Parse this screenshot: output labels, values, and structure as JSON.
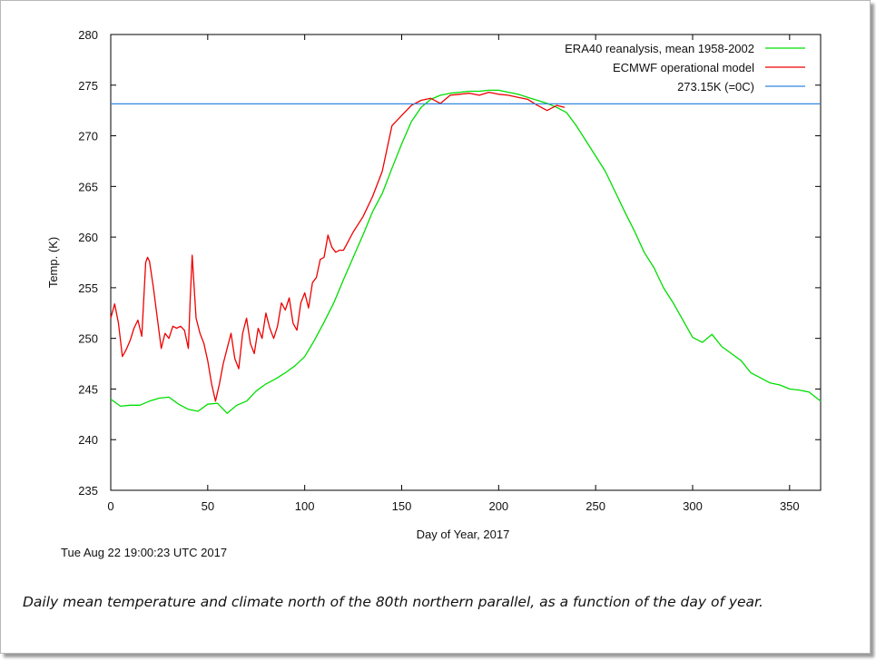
{
  "chart_data": {
    "type": "line",
    "title": "",
    "xlabel": "Day of Year, 2017",
    "ylabel": "Temp. (K)",
    "xlim": [
      0,
      366
    ],
    "ylim": [
      235,
      280
    ],
    "xticks": [
      0,
      50,
      100,
      150,
      200,
      250,
      300,
      350
    ],
    "yticks": [
      235,
      240,
      245,
      250,
      255,
      260,
      265,
      270,
      275,
      280
    ],
    "legend_position": "top-right",
    "series": [
      {
        "name": "ERA40 reanalysis, mean 1958-2002",
        "color": "#00dd00",
        "x": [
          0,
          5,
          10,
          15,
          20,
          25,
          30,
          35,
          40,
          45,
          50,
          55,
          60,
          65,
          70,
          75,
          80,
          85,
          90,
          95,
          100,
          105,
          110,
          115,
          120,
          125,
          130,
          135,
          140,
          145,
          150,
          155,
          160,
          165,
          170,
          175,
          180,
          185,
          190,
          195,
          200,
          205,
          210,
          215,
          220,
          225,
          230,
          235,
          240,
          245,
          250,
          255,
          260,
          265,
          270,
          275,
          280,
          285,
          290,
          295,
          300,
          305,
          310,
          315,
          320,
          325,
          330,
          335,
          340,
          345,
          350,
          355,
          360,
          366
        ],
        "y": [
          244.0,
          243.3,
          243.4,
          243.4,
          243.8,
          244.1,
          244.2,
          243.5,
          243.0,
          242.8,
          243.5,
          243.6,
          242.6,
          243.4,
          243.8,
          244.8,
          245.5,
          246.0,
          246.6,
          247.3,
          248.2,
          249.8,
          251.6,
          253.5,
          255.8,
          258.0,
          260.2,
          262.5,
          264.3,
          266.8,
          269.2,
          271.4,
          272.8,
          273.6,
          274.0,
          274.2,
          274.3,
          274.4,
          274.4,
          274.5,
          274.5,
          274.3,
          274.1,
          273.8,
          273.5,
          273.2,
          272.8,
          272.3,
          271.0,
          269.5,
          268.0,
          266.5,
          264.5,
          262.5,
          260.6,
          258.5,
          257.0,
          255.0,
          253.5,
          251.8,
          250.1,
          249.6,
          250.4,
          249.2,
          248.5,
          247.8,
          246.6,
          246.1,
          245.6,
          245.4,
          245.0,
          244.9,
          244.7,
          243.8
        ]
      },
      {
        "name": "ECMWF operational model",
        "color": "#ee0000",
        "x": [
          0,
          2,
          4,
          6,
          8,
          10,
          12,
          14,
          16,
          18,
          19,
          20,
          22,
          24,
          26,
          28,
          30,
          32,
          34,
          36,
          38,
          40,
          41,
          42,
          44,
          46,
          48,
          50,
          52,
          54,
          56,
          58,
          60,
          62,
          64,
          66,
          68,
          70,
          72,
          74,
          76,
          78,
          80,
          82,
          84,
          86,
          88,
          90,
          92,
          94,
          96,
          98,
          100,
          102,
          104,
          106,
          108,
          110,
          112,
          114,
          116,
          118,
          120,
          125,
          130,
          135,
          140,
          145,
          150,
          155,
          160,
          165,
          170,
          175,
          180,
          185,
          190,
          195,
          200,
          205,
          210,
          215,
          220,
          225,
          230,
          234
        ],
        "y": [
          252.0,
          253.4,
          251.5,
          248.2,
          248.9,
          249.8,
          251.0,
          251.8,
          250.2,
          257.5,
          258.0,
          257.6,
          255.0,
          252.0,
          249.0,
          250.5,
          250.0,
          251.2,
          251.0,
          251.2,
          250.8,
          249.0,
          254.0,
          258.2,
          252.0,
          250.5,
          249.5,
          247.8,
          245.5,
          243.8,
          245.5,
          247.5,
          249.0,
          250.5,
          248.0,
          247.0,
          250.5,
          252.0,
          249.5,
          248.5,
          251.0,
          250.0,
          252.5,
          251.0,
          250.0,
          251.2,
          253.5,
          252.8,
          254.0,
          251.5,
          250.8,
          253.5,
          254.5,
          253.0,
          255.5,
          256.0,
          257.8,
          258.0,
          260.2,
          259.0,
          258.5,
          258.7,
          258.7,
          260.5,
          262.0,
          264.0,
          266.5,
          271.0,
          272.0,
          273.0,
          273.5,
          273.7,
          273.2,
          274.0,
          274.1,
          274.2,
          274.0,
          274.3,
          274.1,
          274.0,
          273.8,
          273.6,
          273.0,
          272.5,
          273.0,
          272.8
        ]
      },
      {
        "name": "273.15K (=0C)",
        "color": "#3388dd",
        "x": [
          0,
          366
        ],
        "y": [
          273.15,
          273.15
        ]
      }
    ]
  },
  "timestamp": "Tue Aug 22 19:00:23 UTC 2017",
  "caption": "Daily mean temperature and climate north of the 80th northern parallel, as a function of the day of year."
}
